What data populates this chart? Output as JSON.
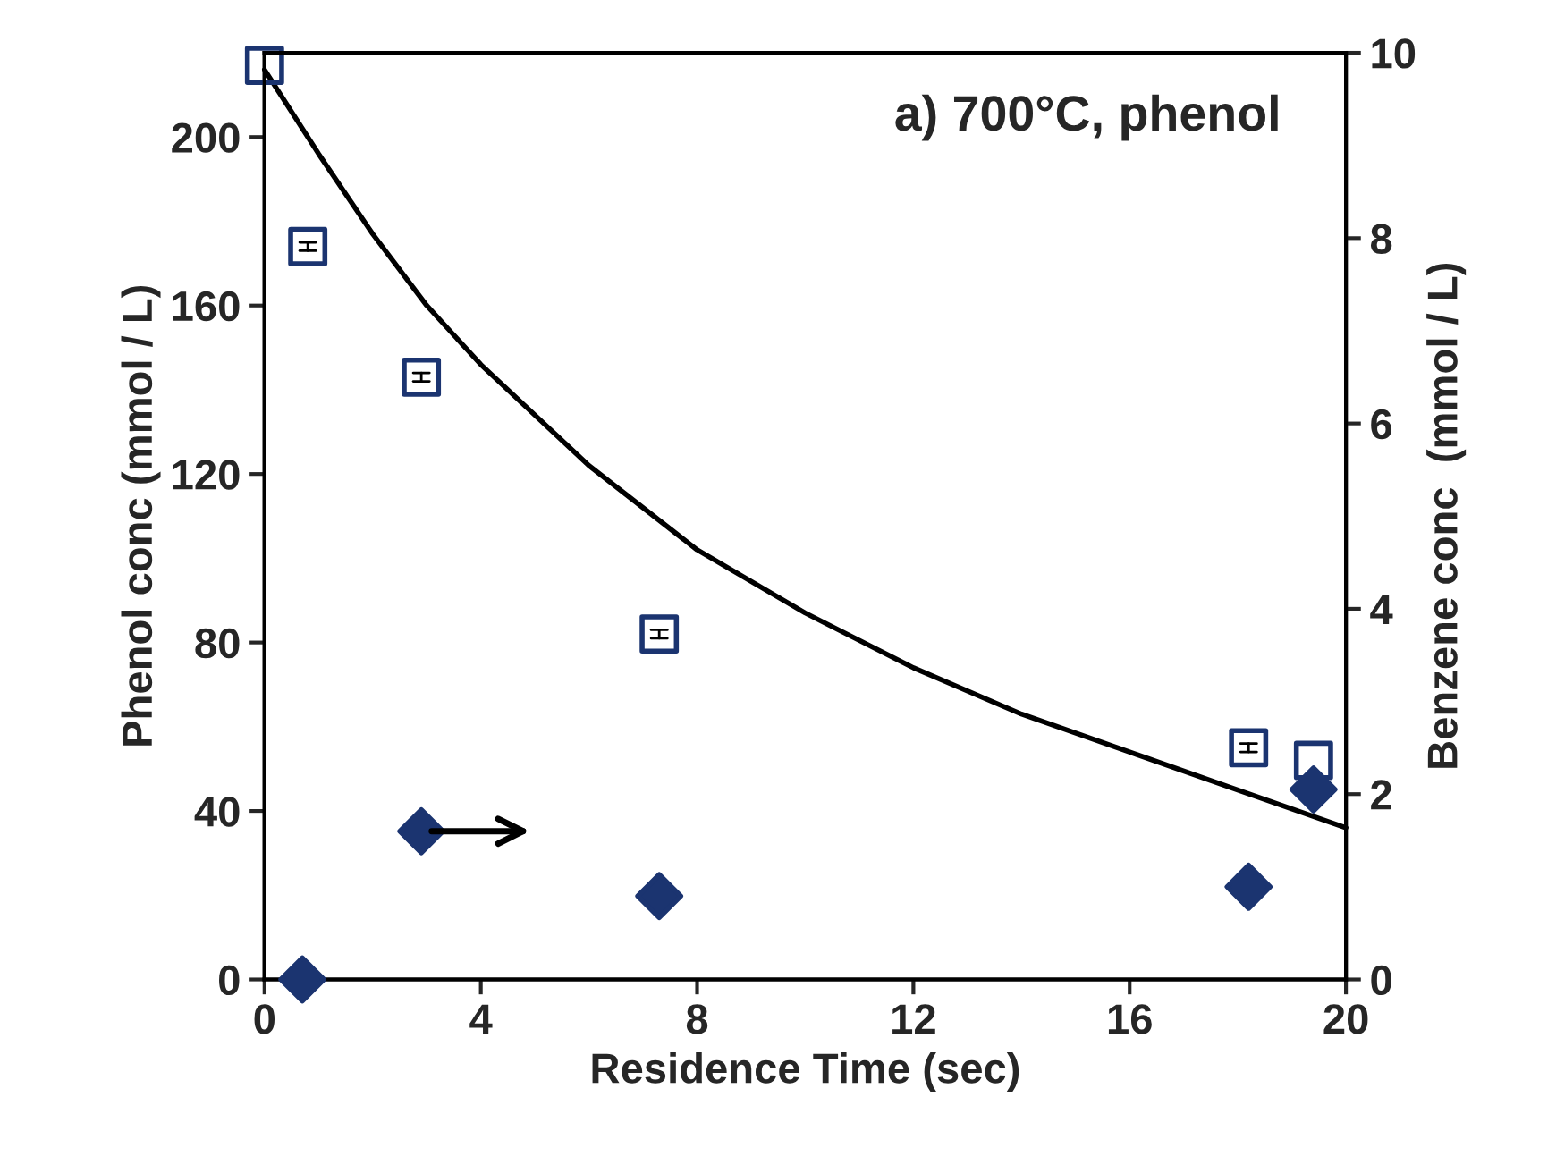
{
  "chart_data": {
    "type": "scatter",
    "title": "a) 700°C, phenol",
    "xlabel": "Residence Time (sec)",
    "ylabel": "Phenol conc (mmol / L)",
    "y2label": "Benzene conc  (mmol / L)",
    "xlim": [
      0,
      20
    ],
    "xticks": [
      0,
      4,
      8,
      12,
      16,
      20
    ],
    "ylim": [
      0,
      220
    ],
    "yticks": [
      0,
      40,
      80,
      120,
      160,
      200
    ],
    "y2lim": [
      0,
      10
    ],
    "y2ticks": [
      0,
      2,
      4,
      6,
      8,
      10
    ],
    "grid": false,
    "legend": false,
    "series": [
      {
        "marker": "square",
        "color": "#1b3470",
        "x": [
          0.0,
          0.8,
          2.9,
          7.3,
          18.2,
          19.4
        ],
        "values": [
          217,
          174,
          143,
          82,
          55,
          52
        ],
        "errors": [
          null,
          1,
          1,
          1,
          1,
          null
        ]
      },
      {
        "marker": "diamond",
        "color": "#1b3470",
        "axis": "y2",
        "x": [
          0.7,
          2.9,
          7.3,
          18.2,
          19.4
        ],
        "values": [
          0.0,
          1.6,
          0.9,
          1.0,
          2.05
        ]
      },
      {
        "type": "line",
        "color": "#000000",
        "line_style": "solid",
        "marker": "none",
        "x": [
          0,
          1,
          2,
          3,
          4,
          6,
          8,
          10,
          12,
          14,
          16,
          18,
          20
        ],
        "values": [
          216,
          196,
          177,
          160,
          146,
          122,
          102,
          87,
          74,
          63,
          54,
          45,
          36
        ]
      }
    ]
  }
}
